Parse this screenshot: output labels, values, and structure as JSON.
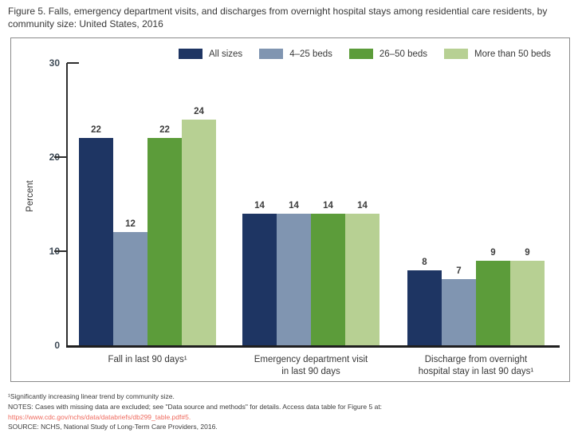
{
  "title": "Figure 5. Falls, emergency department visits, and discharges from overnight hospital stays among residential care residents, by community size: United States, 2016",
  "colors": {
    "navy": "#1e3563",
    "blue_gray": "#8095b1",
    "green": "#5c9c3a",
    "light_green": "#b7d093",
    "axis": "#2e2e2e",
    "box_border": "#8a8a8a",
    "text": "#383838",
    "link_red": "#ef6a5e"
  },
  "chart_data": {
    "type": "bar",
    "title": "Figure 5. Falls, emergency department visits, and discharges from overnight hospital stays among residential care residents, by community size: United States, 2016",
    "xlabel": "",
    "ylabel": "Percent",
    "ylim": [
      0,
      30
    ],
    "yticks": [
      0,
      10,
      20,
      30
    ],
    "grid": false,
    "legend_position": "top-inside",
    "categories": [
      "Fall in last 90 days¹",
      "Emergency department visit\nin last 90 days",
      "Discharge from overnight\nhospital stay in last 90 days¹"
    ],
    "series": [
      {
        "name": "All sizes",
        "color": "#1e3563",
        "values": [
          22,
          14,
          8
        ]
      },
      {
        "name": "4–25 beds",
        "color": "#8095b1",
        "values": [
          12,
          14,
          7
        ]
      },
      {
        "name": "26–50 beds",
        "color": "#5c9c3a",
        "values": [
          22,
          14,
          9
        ]
      },
      {
        "name": "More than 50 beds",
        "color": "#b7d093",
        "values": [
          24,
          14,
          9
        ]
      }
    ]
  },
  "footnotes": {
    "note1": "¹Significantly increasing linear trend by community size.",
    "note2": "NOTES: Cases with missing data are excluded; see \"Data source and methods\" for details. Access data table for Figure 5 at:",
    "link": "https://www.cdc.gov/nchs/data/databriefs/db299_table.pdf#5.",
    "source": "SOURCE: NCHS, National Study of Long-Term Care Providers, 2016."
  }
}
